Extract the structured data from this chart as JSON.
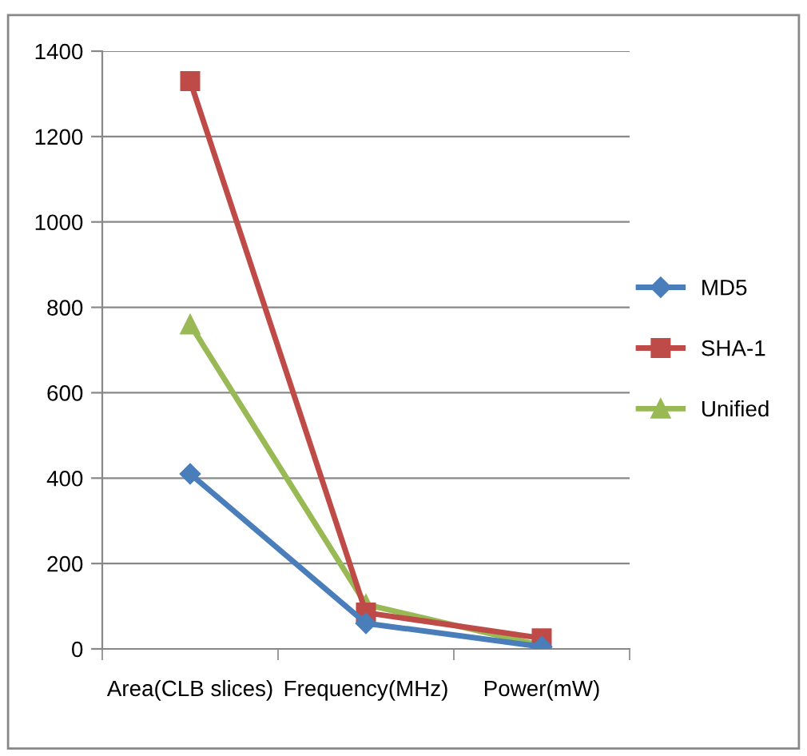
{
  "chart_data": {
    "type": "line",
    "categories": [
      "Area(CLB slices)",
      "Frequency(MHz)",
      "Power(mW)"
    ],
    "series": [
      {
        "name": "MD5",
        "color": "#4a7ebb",
        "values": [
          410,
          60,
          5
        ],
        "marker": "diamond"
      },
      {
        "name": "SHA-1",
        "color": "#be4b48",
        "values": [
          1330,
          85,
          25
        ],
        "marker": "square"
      },
      {
        "name": "Unified",
        "color": "#98b954",
        "values": [
          760,
          104,
          8
        ],
        "marker": "triangle"
      }
    ],
    "ylim": [
      0,
      1400
    ],
    "yticks": [
      0,
      200,
      400,
      600,
      800,
      1000,
      1200,
      1400
    ],
    "grid": "y",
    "legend": "right"
  }
}
